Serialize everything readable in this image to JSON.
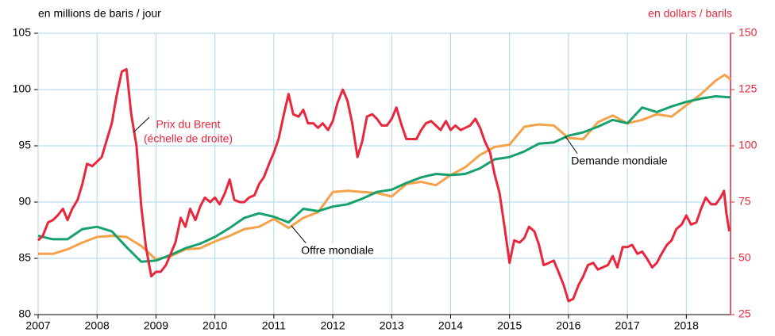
{
  "chart_data": {
    "type": "line",
    "y_label": "en millions de baris / jour",
    "y2_label": "en dollars / barils",
    "xlim": [
      2007,
      2018.75
    ],
    "xticks": [
      2007,
      2008,
      2009,
      2010,
      2011,
      2012,
      2013,
      2014,
      2015,
      2016,
      2017,
      2018
    ],
    "ylim": [
      80,
      105
    ],
    "yticks": [
      80,
      85,
      90,
      95,
      100,
      105
    ],
    "y2lim": [
      25,
      150
    ],
    "y2ticks": [
      25,
      50,
      75,
      100,
      125,
      150
    ],
    "y2_color": "#e8273c",
    "grid": true,
    "grid_color": "#a9d7ec",
    "annotations": [
      "Prix du Brent",
      "(échelle de droite)",
      "Demande mondiale",
      "Offre mondiale"
    ],
    "series": [
      {
        "name": "Offre mondiale",
        "color": "#f4a24a",
        "x": [
          2007,
          2007.25,
          2007.5,
          2007.75,
          2008,
          2008.25,
          2008.5,
          2008.75,
          2009,
          2009.25,
          2009.5,
          2009.75,
          2010,
          2010.25,
          2010.5,
          2010.75,
          2011,
          2011.25,
          2011.5,
          2011.75,
          2012,
          2012.25,
          2012.5,
          2012.75,
          2013,
          2013.25,
          2013.5,
          2013.75,
          2014,
          2014.25,
          2014.5,
          2014.75,
          2015,
          2015.25,
          2015.5,
          2015.75,
          2016,
          2016.25,
          2016.5,
          2016.75,
          2017,
          2017.25,
          2017.5,
          2017.75,
          2018,
          2018.25,
          2018.5,
          2018.65,
          2018.75
        ],
        "values": [
          85.4,
          85.4,
          85.8,
          86.4,
          86.9,
          87.0,
          86.9,
          86.1,
          84.9,
          85.2,
          85.8,
          85.9,
          86.5,
          87.0,
          87.6,
          87.8,
          88.5,
          87.7,
          88.6,
          89.1,
          90.9,
          91.0,
          90.9,
          90.8,
          90.5,
          91.6,
          91.8,
          91.5,
          92.4,
          93.1,
          94.2,
          94.9,
          95.1,
          96.7,
          96.9,
          96.8,
          95.7,
          95.6,
          97.1,
          97.7,
          97.0,
          97.3,
          97.8,
          97.6,
          98.6,
          99.6,
          100.8,
          101.3,
          100.9
        ]
      },
      {
        "name": "Demande mondiale",
        "color": "#16a06c",
        "x": [
          2007,
          2007.25,
          2007.5,
          2007.75,
          2008,
          2008.25,
          2008.5,
          2008.75,
          2009,
          2009.25,
          2009.5,
          2009.75,
          2010,
          2010.25,
          2010.5,
          2010.75,
          2011,
          2011.25,
          2011.5,
          2011.75,
          2012,
          2012.25,
          2012.5,
          2012.75,
          2013,
          2013.25,
          2013.5,
          2013.75,
          2014,
          2014.25,
          2014.5,
          2014.75,
          2015,
          2015.25,
          2015.5,
          2015.75,
          2016,
          2016.25,
          2016.5,
          2016.75,
          2017,
          2017.25,
          2017.5,
          2017.75,
          2018,
          2018.25,
          2018.5,
          2018.75
        ],
        "values": [
          87.0,
          86.7,
          86.7,
          87.6,
          87.8,
          87.4,
          86.0,
          84.7,
          84.8,
          85.3,
          85.9,
          86.3,
          86.9,
          87.7,
          88.6,
          89.0,
          88.7,
          88.2,
          89.4,
          89.2,
          89.6,
          89.8,
          90.3,
          90.9,
          91.1,
          91.7,
          92.2,
          92.5,
          92.4,
          92.5,
          93.0,
          93.8,
          94.0,
          94.5,
          95.2,
          95.3,
          95.9,
          96.2,
          96.7,
          97.3,
          97.0,
          98.4,
          98.0,
          98.5,
          98.9,
          99.2,
          99.4,
          99.3
        ]
      },
      {
        "name": "Prix du Brent",
        "color": "#e8273c",
        "axis": "y2",
        "x": [
          2007,
          2007.08,
          2007.17,
          2007.25,
          2007.33,
          2007.42,
          2007.5,
          2007.58,
          2007.67,
          2007.75,
          2007.83,
          2007.92,
          2008,
          2008.08,
          2008.17,
          2008.25,
          2008.33,
          2008.42,
          2008.5,
          2008.58,
          2008.67,
          2008.75,
          2008.83,
          2008.92,
          2009,
          2009.08,
          2009.17,
          2009.25,
          2009.33,
          2009.42,
          2009.5,
          2009.58,
          2009.67,
          2009.75,
          2009.83,
          2009.92,
          2010,
          2010.08,
          2010.17,
          2010.25,
          2010.33,
          2010.42,
          2010.5,
          2010.58,
          2010.67,
          2010.75,
          2010.83,
          2010.92,
          2011,
          2011.08,
          2011.17,
          2011.25,
          2011.33,
          2011.42,
          2011.5,
          2011.58,
          2011.67,
          2011.75,
          2011.83,
          2011.92,
          2012,
          2012.08,
          2012.17,
          2012.25,
          2012.33,
          2012.42,
          2012.5,
          2012.58,
          2012.67,
          2012.75,
          2012.83,
          2012.92,
          2013,
          2013.08,
          2013.17,
          2013.25,
          2013.33,
          2013.42,
          2013.5,
          2013.58,
          2013.67,
          2013.75,
          2013.83,
          2013.92,
          2014,
          2014.08,
          2014.17,
          2014.25,
          2014.33,
          2014.42,
          2014.5,
          2014.58,
          2014.67,
          2014.75,
          2014.83,
          2014.92,
          2015,
          2015.08,
          2015.17,
          2015.25,
          2015.33,
          2015.42,
          2015.5,
          2015.58,
          2015.67,
          2015.75,
          2015.83,
          2015.92,
          2016,
          2016.08,
          2016.17,
          2016.25,
          2016.33,
          2016.42,
          2016.5,
          2016.58,
          2016.67,
          2016.75,
          2016.83,
          2016.92,
          2017,
          2017.08,
          2017.17,
          2017.25,
          2017.33,
          2017.42,
          2017.5,
          2017.58,
          2017.67,
          2017.75,
          2017.83,
          2017.92,
          2018,
          2018.08,
          2018.17,
          2018.25,
          2018.33,
          2018.42,
          2018.5,
          2018.58,
          2018.64,
          2018.68,
          2018.73
        ],
        "values": [
          58,
          60,
          66,
          67,
          69,
          72,
          67,
          72,
          76,
          83,
          92,
          91,
          93,
          95,
          103,
          110,
          122,
          133,
          134,
          114,
          100,
          73,
          55,
          42,
          44,
          44,
          47,
          52,
          57,
          68,
          64,
          72,
          67,
          73,
          77,
          75,
          77,
          74,
          79,
          85,
          76,
          75,
          75,
          77,
          78,
          83,
          86,
          92,
          97,
          103,
          114,
          123,
          114,
          113,
          116,
          110,
          110,
          108,
          110,
          107,
          111,
          119,
          125,
          120,
          110,
          95,
          102,
          113,
          114,
          112,
          109,
          109,
          112,
          117,
          109,
          103,
          103,
          103,
          107,
          110,
          111,
          109,
          107,
          111,
          107,
          109,
          107,
          108,
          109,
          112,
          108,
          102,
          97,
          87,
          79,
          63,
          48,
          58,
          57,
          59,
          64,
          62,
          56,
          47,
          48,
          49,
          44,
          38,
          31,
          32,
          38,
          42,
          47,
          48,
          45,
          46,
          47,
          51,
          46,
          55,
          55,
          56,
          52,
          53,
          50,
          46,
          48,
          52,
          56,
          58,
          63,
          65,
          69,
          65,
          66,
          72,
          77,
          74,
          74,
          77,
          80,
          70,
          62
        ]
      }
    ]
  }
}
